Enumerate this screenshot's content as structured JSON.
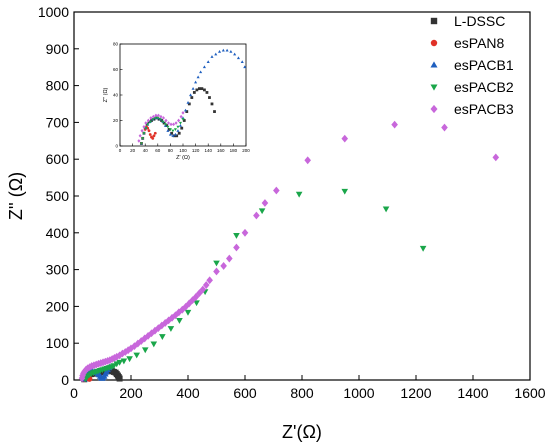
{
  "chart_data": {
    "type": "scatter",
    "xlabel": "Z'(Ω)",
    "ylabel": "Z'' (Ω)",
    "xlim": [
      0,
      1600
    ],
    "ylim": [
      0,
      1000
    ],
    "xticks": [
      "0",
      "200",
      "400",
      "600",
      "800",
      "1000",
      "1200",
      "1400",
      "1600"
    ],
    "yticks": [
      "0",
      "100",
      "200",
      "300",
      "400",
      "500",
      "600",
      "700",
      "800",
      "900",
      "1000"
    ],
    "legend": {
      "position": "top-right",
      "entries": [
        "L-DSSC",
        "esPAN8",
        "esPACB1",
        "esPACB2",
        "esPACB3"
      ]
    },
    "series": [
      {
        "name": "L-DSSC",
        "color": "#333333",
        "marker": "square",
        "points": [
          [
            36,
            2
          ],
          [
            38,
            6
          ],
          [
            40,
            10
          ],
          [
            43,
            13
          ],
          [
            47,
            15
          ],
          [
            51,
            16
          ],
          [
            55,
            16
          ],
          [
            60,
            16
          ],
          [
            66,
            17
          ],
          [
            72,
            18
          ],
          [
            80,
            19
          ],
          [
            88,
            20
          ],
          [
            96,
            21
          ],
          [
            104,
            22
          ],
          [
            112,
            23
          ],
          [
            120,
            24
          ],
          [
            128,
            25
          ],
          [
            134,
            24
          ],
          [
            140,
            22
          ],
          [
            146,
            20
          ],
          [
            150,
            16
          ],
          [
            154,
            12
          ],
          [
            157,
            8
          ],
          [
            160,
            4
          ]
        ]
      },
      {
        "name": "esPAN8",
        "color": "#e03228",
        "marker": "circle",
        "points": [
          [
            34,
            2
          ],
          [
            36,
            6
          ],
          [
            38,
            10
          ],
          [
            41,
            13
          ],
          [
            44,
            14
          ],
          [
            47,
            13
          ],
          [
            50,
            10
          ],
          [
            52,
            6
          ],
          [
            54,
            3
          ]
        ]
      },
      {
        "name": "esPACB1",
        "color": "#1f5fbf",
        "marker": "triangle-up",
        "points": [
          [
            36,
            2
          ],
          [
            38,
            8
          ],
          [
            41,
            13
          ],
          [
            45,
            17
          ],
          [
            50,
            20
          ],
          [
            55,
            22
          ],
          [
            60,
            23
          ],
          [
            66,
            23
          ],
          [
            72,
            22
          ],
          [
            78,
            20
          ],
          [
            84,
            17
          ],
          [
            88,
            14
          ],
          [
            92,
            10
          ],
          [
            95,
            6
          ],
          [
            98,
            4
          ],
          [
            102,
            6
          ],
          [
            106,
            10
          ],
          [
            110,
            16
          ],
          [
            114,
            22
          ],
          [
            118,
            28
          ],
          [
            122,
            33
          ],
          [
            126,
            36
          ]
        ]
      },
      {
        "name": "esPACB2",
        "color": "#1aa64a",
        "marker": "triangle-down",
        "points": [
          [
            40,
            3
          ],
          [
            45,
            8
          ],
          [
            52,
            13
          ],
          [
            60,
            17
          ],
          [
            68,
            20
          ],
          [
            76,
            22
          ],
          [
            84,
            24
          ],
          [
            92,
            26
          ],
          [
            100,
            28
          ],
          [
            108,
            30
          ],
          [
            116,
            32
          ],
          [
            124,
            34
          ],
          [
            132,
            36
          ],
          [
            140,
            39
          ],
          [
            150,
            44
          ],
          [
            160,
            48
          ],
          [
            175,
            52
          ],
          [
            195,
            58
          ],
          [
            220,
            68
          ],
          [
            250,
            82
          ],
          [
            280,
            98
          ],
          [
            310,
            118
          ],
          [
            340,
            140
          ],
          [
            370,
            162
          ],
          [
            400,
            184
          ],
          [
            430,
            210
          ],
          [
            460,
            240
          ],
          [
            500,
            318
          ],
          [
            570,
            393
          ],
          [
            660,
            460
          ],
          [
            790,
            505
          ],
          [
            950,
            513
          ],
          [
            1095,
            465
          ],
          [
            1225,
            358
          ]
        ]
      },
      {
        "name": "esPACB3",
        "color": "#c867db",
        "marker": "diamond",
        "points": [
          [
            28,
            5
          ],
          [
            30,
            12
          ],
          [
            33,
            18
          ],
          [
            37,
            23
          ],
          [
            42,
            28
          ],
          [
            48,
            32
          ],
          [
            55,
            35
          ],
          [
            62,
            38
          ],
          [
            70,
            40
          ],
          [
            78,
            42
          ],
          [
            86,
            44
          ],
          [
            94,
            46
          ],
          [
            102,
            48
          ],
          [
            110,
            50
          ],
          [
            118,
            52
          ],
          [
            126,
            54
          ],
          [
            134,
            57
          ],
          [
            142,
            60
          ],
          [
            150,
            63
          ],
          [
            160,
            67
          ],
          [
            170,
            72
          ],
          [
            180,
            76
          ],
          [
            190,
            81
          ],
          [
            200,
            86
          ],
          [
            212,
            92
          ],
          [
            224,
            99
          ],
          [
            236,
            106
          ],
          [
            248,
            113
          ],
          [
            260,
            120
          ],
          [
            272,
            127
          ],
          [
            284,
            134
          ],
          [
            296,
            141
          ],
          [
            308,
            148
          ],
          [
            320,
            155
          ],
          [
            332,
            162
          ],
          [
            344,
            169
          ],
          [
            356,
            176
          ],
          [
            368,
            184
          ],
          [
            380,
            191
          ],
          [
            392,
            199
          ],
          [
            404,
            208
          ],
          [
            416,
            217
          ],
          [
            428,
            226
          ],
          [
            440,
            236
          ],
          [
            452,
            246
          ],
          [
            464,
            258
          ],
          [
            476,
            271
          ],
          [
            500,
            295
          ],
          [
            525,
            310
          ],
          [
            545,
            330
          ],
          [
            570,
            360
          ],
          [
            600,
            400
          ],
          [
            640,
            447
          ],
          [
            670,
            481
          ],
          [
            710,
            515
          ],
          [
            820,
            597
          ],
          [
            950,
            656
          ],
          [
            1125,
            694
          ],
          [
            1300,
            686
          ],
          [
            1480,
            605
          ]
        ]
      }
    ],
    "inset": {
      "xlabel": "Z' (Ω)",
      "ylabel": "Z'' (Ω)",
      "xlim": [
        0,
        200
      ],
      "ylim": [
        0,
        80
      ],
      "xticks": [
        "0",
        "20",
        "40",
        "60",
        "80",
        "100",
        "120",
        "140",
        "160",
        "180",
        "200"
      ],
      "yticks": [
        "0",
        "20",
        "40",
        "60",
        "80"
      ],
      "series": [
        {
          "name": "L-DSSC",
          "points": [
            [
              34,
              2
            ],
            [
              36,
              6
            ],
            [
              38,
              10
            ],
            [
              40,
              14
            ],
            [
              43,
              17
            ],
            [
              46,
              19
            ],
            [
              50,
              20
            ],
            [
              54,
              21
            ],
            [
              58,
              22
            ],
            [
              62,
              21
            ],
            [
              66,
              20
            ],
            [
              70,
              18
            ],
            [
              74,
              16
            ],
            [
              78,
              13
            ],
            [
              82,
              10
            ],
            [
              86,
              8
            ],
            [
              90,
              8
            ],
            [
              94,
              10
            ],
            [
              98,
              14
            ],
            [
              102,
              20
            ],
            [
              106,
              27
            ],
            [
              110,
              33
            ],
            [
              114,
              38
            ],
            [
              118,
              42
            ],
            [
              122,
              44
            ],
            [
              126,
              45
            ],
            [
              130,
              45
            ],
            [
              134,
              44
            ],
            [
              138,
              42
            ],
            [
              142,
              38
            ],
            [
              146,
              33
            ],
            [
              150,
              27
            ]
          ]
        },
        {
          "name": "esPAN8",
          "points": [
            [
              34,
              2
            ],
            [
              36,
              6
            ],
            [
              38,
              10
            ],
            [
              40,
              13
            ],
            [
              42,
              15
            ],
            [
              44,
              14
            ],
            [
              46,
              12
            ],
            [
              48,
              9
            ],
            [
              50,
              7
            ],
            [
              52,
              6
            ],
            [
              54,
              8
            ],
            [
              56,
              10
            ]
          ]
        },
        {
          "name": "esPACB1",
          "points": [
            [
              34,
              2
            ],
            [
              36,
              6
            ],
            [
              38,
              10
            ],
            [
              41,
              14
            ],
            [
              44,
              17
            ],
            [
              48,
              19
            ],
            [
              52,
              21
            ],
            [
              56,
              22
            ],
            [
              60,
              22
            ],
            [
              64,
              21
            ],
            [
              68,
              19
            ],
            [
              72,
              16
            ],
            [
              76,
              12
            ],
            [
              80,
              9
            ],
            [
              84,
              8
            ],
            [
              88,
              9
            ],
            [
              92,
              12
            ],
            [
              96,
              16
            ],
            [
              100,
              22
            ],
            [
              104,
              28
            ],
            [
              108,
              34
            ],
            [
              112,
              40
            ],
            [
              116,
              45
            ],
            [
              120,
              50
            ],
            [
              124,
              54
            ],
            [
              128,
              58
            ],
            [
              134,
              62
            ],
            [
              140,
              66
            ],
            [
              146,
              70
            ],
            [
              152,
              72
            ],
            [
              158,
              74
            ],
            [
              164,
              75
            ],
            [
              170,
              75
            ],
            [
              176,
              74
            ],
            [
              182,
              72
            ],
            [
              188,
              69
            ],
            [
              194,
              66
            ],
            [
              198,
              62
            ]
          ]
        },
        {
          "name": "esPACB2",
          "points": [
            [
              34,
              2
            ],
            [
              36,
              6
            ],
            [
              38,
              10
            ],
            [
              41,
              14
            ],
            [
              44,
              17
            ],
            [
              48,
              19
            ],
            [
              52,
              21
            ],
            [
              56,
              22
            ],
            [
              60,
              22
            ],
            [
              64,
              21
            ],
            [
              68,
              19
            ],
            [
              72,
              17
            ],
            [
              76,
              15
            ],
            [
              80,
              13
            ],
            [
              84,
              12
            ],
            [
              88,
              13
            ],
            [
              92,
              15
            ],
            [
              96,
              18
            ],
            [
              100,
              21
            ]
          ]
        },
        {
          "name": "esPACB3",
          "points": [
            [
              30,
              4
            ],
            [
              32,
              8
            ],
            [
              35,
              12
            ],
            [
              38,
              15
            ],
            [
              41,
              18
            ],
            [
              45,
              20
            ],
            [
              49,
              22
            ],
            [
              53,
              23
            ],
            [
              57,
              24
            ],
            [
              61,
              24
            ],
            [
              65,
              23
            ],
            [
              69,
              22
            ],
            [
              73,
              20
            ],
            [
              77,
              18
            ],
            [
              81,
              17
            ],
            [
              85,
              17
            ],
            [
              89,
              18
            ],
            [
              93,
              20
            ],
            [
              97,
              23
            ],
            [
              100,
              26
            ]
          ]
        }
      ]
    }
  }
}
